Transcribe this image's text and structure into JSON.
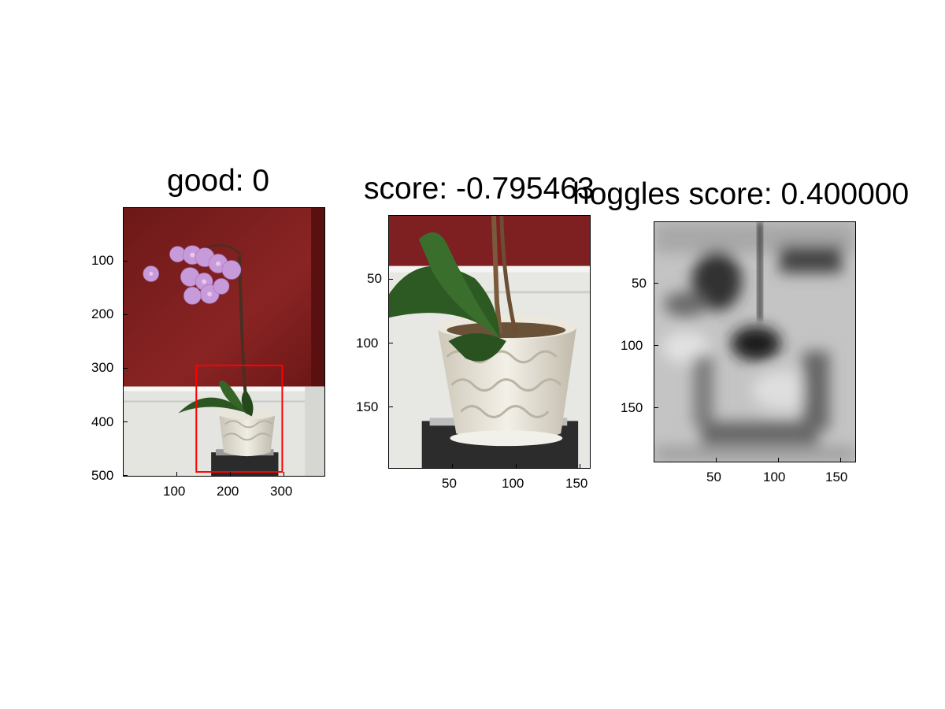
{
  "panels": [
    {
      "title": "good: 0",
      "image": "orchid-full-photo",
      "xticks": [
        "100",
        "200",
        "300"
      ],
      "yticks": [
        "100",
        "200",
        "300",
        "400",
        "500"
      ],
      "box_color": "#ff0000"
    },
    {
      "title": "score: -0.795463",
      "image": "orchid-crop-photo",
      "xticks": [
        "50",
        "100",
        "150"
      ],
      "yticks": [
        "50",
        "100",
        "150"
      ]
    },
    {
      "title": "hoggles score: 0.400000",
      "image": "hoggles-grayscale-reconstruction",
      "xticks": [
        "50",
        "100",
        "150"
      ],
      "yticks": [
        "50",
        "100",
        "150"
      ]
    }
  ],
  "colors": {
    "wall": "#7a1c1c",
    "wainscot": "#e6e6e3",
    "leaf": "#2e5a22",
    "orchid": "#c89ad8",
    "box": "#ff0000"
  }
}
